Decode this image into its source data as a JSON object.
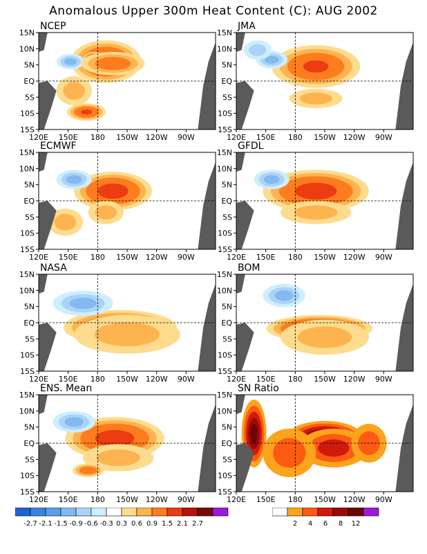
{
  "title": "Anomalous Upper 300m Heat Content (C): AUG 2002",
  "axes": {
    "lat_ticks": [
      "15N",
      "10N",
      "5N",
      "EQ",
      "5S",
      "10S",
      "15S"
    ],
    "lon_ticks": [
      "120E",
      "150E",
      "180",
      "150W",
      "120W",
      "90W"
    ]
  },
  "panels": [
    {
      "title": "NCEP",
      "kind": "anom",
      "blobs": [
        [
          0.38,
          0.3,
          0.2,
          0.22,
          6
        ],
        [
          0.31,
          0.27,
          0.06,
          0.07,
          7
        ],
        [
          0.27,
          0.82,
          0.11,
          0.09,
          5
        ],
        [
          0.18,
          0.3,
          0.08,
          0.08,
          -3
        ],
        [
          0.42,
          0.32,
          0.18,
          0.12,
          4
        ],
        [
          0.2,
          0.6,
          0.1,
          0.15,
          2
        ]
      ]
    },
    {
      "title": "JMA",
      "kind": "anom",
      "blobs": [
        [
          0.45,
          0.35,
          0.25,
          0.22,
          5
        ],
        [
          0.2,
          0.28,
          0.09,
          0.09,
          -3
        ],
        [
          0.45,
          0.68,
          0.15,
          0.1,
          2
        ],
        [
          0.12,
          0.18,
          0.08,
          0.1,
          -2
        ]
      ]
    },
    {
      "title": "ECMWF",
      "kind": "anom",
      "blobs": [
        [
          0.42,
          0.4,
          0.22,
          0.2,
          6
        ],
        [
          0.2,
          0.28,
          0.1,
          0.1,
          -3
        ],
        [
          0.38,
          0.62,
          0.1,
          0.12,
          2
        ],
        [
          0.15,
          0.72,
          0.1,
          0.14,
          2
        ]
      ]
    },
    {
      "title": "GFDL",
      "kind": "anom",
      "blobs": [
        [
          0.45,
          0.4,
          0.3,
          0.22,
          6
        ],
        [
          0.2,
          0.28,
          0.1,
          0.1,
          -3
        ],
        [
          0.45,
          0.62,
          0.2,
          0.12,
          2
        ]
      ]
    },
    {
      "title": "NASA",
      "kind": "anom",
      "blobs": [
        [
          0.46,
          0.55,
          0.32,
          0.18,
          6
        ],
        [
          0.25,
          0.3,
          0.17,
          0.13,
          -3
        ],
        [
          0.5,
          0.62,
          0.3,
          0.2,
          2
        ]
      ]
    },
    {
      "title": "BOM",
      "kind": "anom",
      "blobs": [
        [
          0.47,
          0.56,
          0.3,
          0.14,
          7
        ],
        [
          0.52,
          0.55,
          0.1,
          0.06,
          8
        ],
        [
          0.27,
          0.22,
          0.12,
          0.12,
          -3
        ],
        [
          0.5,
          0.65,
          0.25,
          0.18,
          2
        ]
      ]
    },
    {
      "title": "ENS. Mean",
      "kind": "anom",
      "blobs": [
        [
          0.43,
          0.45,
          0.28,
          0.22,
          6
        ],
        [
          0.2,
          0.28,
          0.12,
          0.11,
          -3
        ],
        [
          0.45,
          0.65,
          0.2,
          0.14,
          2
        ],
        [
          0.28,
          0.78,
          0.09,
          0.07,
          4
        ]
      ]
    },
    {
      "title": "SN Ratio",
      "kind": "snr",
      "blobs": [
        [
          0.5,
          0.45,
          0.22,
          0.18,
          6
        ],
        [
          0.1,
          0.4,
          0.07,
          0.35,
          5
        ],
        [
          0.55,
          0.55,
          0.2,
          0.2,
          3
        ],
        [
          0.3,
          0.6,
          0.15,
          0.25,
          2
        ],
        [
          0.75,
          0.5,
          0.1,
          0.2,
          2
        ]
      ]
    }
  ],
  "colorbar_left": {
    "labels": [
      "-2.7",
      "-2.1",
      "-1.5",
      "-0.9",
      "-0.6",
      "-0.3",
      "0.3",
      "0.6",
      "0.9",
      "1.5",
      "2.1",
      "2.7"
    ],
    "colors": [
      "#1e63d2",
      "#3a83e0",
      "#5b9ee8",
      "#82b9f0",
      "#aad3f7",
      "#cdeefd",
      "#ffffff",
      "#fddc8e",
      "#fdb450",
      "#fd7d1e",
      "#ec3c12",
      "#b4140a",
      "#7a0a05",
      "#9b1cd8"
    ]
  },
  "colorbar_right": {
    "labels": [
      "2",
      "4",
      "6",
      "8",
      "12"
    ],
    "colors": [
      "#ffffff",
      "#fda31c",
      "#fd5a14",
      "#d01a0d",
      "#9a0a07",
      "#6d0503",
      "#9b1cd8"
    ]
  },
  "land_color": "#5a5a5a"
}
